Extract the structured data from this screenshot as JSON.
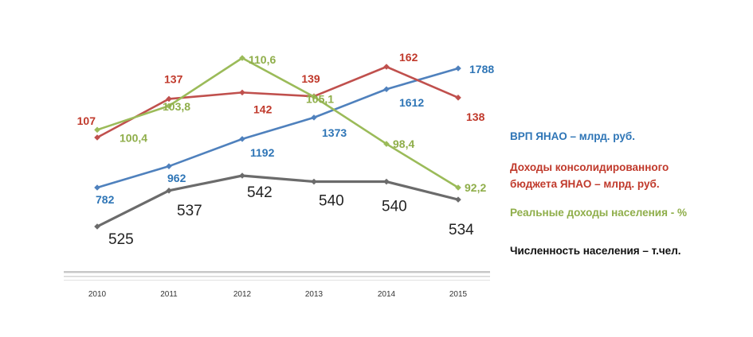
{
  "chart_data": {
    "type": "line",
    "x": [
      "2010",
      "2011",
      "2012",
      "2013",
      "2014",
      "2015"
    ],
    "series": [
      {
        "name": "ВРП ЯНАО – млрд. руб.",
        "values": [
          782,
          962,
          1192,
          1373,
          1612,
          1788
        ],
        "labels": [
          "782",
          "962",
          "1192",
          "1373",
          "1612",
          "1788"
        ],
        "color": "#4f81bd",
        "label_color": "#2e75b6"
      },
      {
        "name": "Доходы консолидированного бюджета ЯНАО – млрд. руб.",
        "values": [
          107,
          137,
          142,
          139,
          162,
          138
        ],
        "labels": [
          "107",
          "137",
          "142",
          "139",
          "162",
          "138"
        ],
        "color": "#c0504d",
        "label_color": "#c0392b"
      },
      {
        "name": "Реальные доходы населения - %",
        "values": [
          100.4,
          103.8,
          110.6,
          105.1,
          98.4,
          92.2
        ],
        "labels": [
          "100,4",
          "103,8",
          "110,6",
          "105,1",
          "98,4",
          "92,2"
        ],
        "color": "#9bbb59",
        "label_color": "#8fae4a"
      },
      {
        "name": "Численность населения – т.чел.",
        "values": [
          525,
          537,
          542,
          540,
          540,
          534
        ],
        "labels": [
          "525",
          "537",
          "542",
          "540",
          "540",
          "534"
        ],
        "color": "#6b6b6b",
        "label_color": "#222222"
      }
    ],
    "legend": [
      {
        "line1": "ВРП ЯНАО – млрд. руб.",
        "line2": ""
      },
      {
        "line1": "Доходы консолидированного",
        "line2": "бюджета ЯНАО – млрд. руб."
      },
      {
        "line1": "Реальные доходы населения - %",
        "line2": ""
      },
      {
        "line1": "Численность населения – т.чел.",
        "line2": ""
      }
    ],
    "legend_position": "right",
    "grid": false,
    "axis_y_visible": false
  }
}
